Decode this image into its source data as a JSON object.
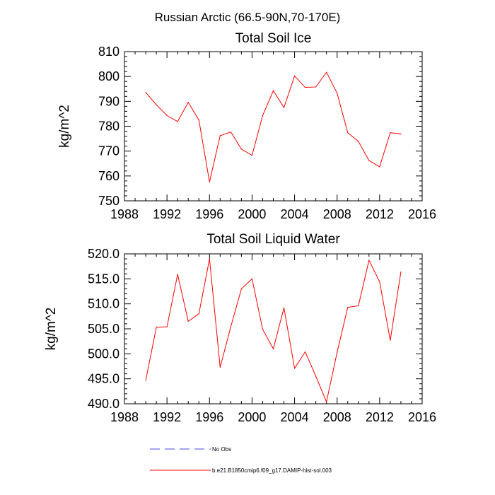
{
  "title": "Russian Arctic (66.5-90N,70-170E)",
  "legend": {
    "items": [
      {
        "label": "No Obs",
        "color": "#4a4adf",
        "dash": "dashed"
      },
      {
        "label": "b.e21.B1850cmip6.f09_g17.DAMIP-hist-sol.003",
        "color": "#ff0000",
        "dash": "solid"
      }
    ]
  },
  "chart_data": [
    {
      "type": "line",
      "title": "Total Soil Ice",
      "xlabel": "",
      "ylabel": "kg/m^2",
      "xlim": [
        1988,
        2016
      ],
      "ylim": [
        750,
        810
      ],
      "xticks": [
        "1988",
        "1992",
        "1996",
        "2000",
        "2004",
        "2008",
        "2012",
        "2016"
      ],
      "yticks": [
        "750",
        "760",
        "770",
        "780",
        "790",
        "800",
        "810"
      ],
      "series": [
        {
          "name": "b.e21.B1850cmip6.f09_g17.DAMIP-hist-sol.003",
          "color": "#ff0000",
          "x": [
            1990,
            1991,
            1992,
            1993,
            1994,
            1995,
            1996,
            1997,
            1998,
            1999,
            2000,
            2001,
            2002,
            2003,
            2004,
            2005,
            2006,
            2007,
            2008,
            2009,
            2010,
            2011,
            2012,
            2013,
            2014
          ],
          "values": [
            793.6,
            788.6,
            784.3,
            781.9,
            789.6,
            782.5,
            757.6,
            776.2,
            777.7,
            770.8,
            768.3,
            784.3,
            794.3,
            787.5,
            800.2,
            795.6,
            795.8,
            801.7,
            793.3,
            777.4,
            773.9,
            766.2,
            763.7,
            777.4,
            776.9
          ]
        }
      ]
    },
    {
      "type": "line",
      "title": "Total Soil Liquid Water",
      "xlabel": "",
      "ylabel": "kg/m^2",
      "xlim": [
        1988,
        2016
      ],
      "ylim": [
        490,
        520
      ],
      "xticks": [
        "1988",
        "1992",
        "1996",
        "2000",
        "2004",
        "2008",
        "2012",
        "2016"
      ],
      "yticks": [
        "490.0",
        "495.0",
        "500.0",
        "505.0",
        "510.0",
        "515.0",
        "520.0"
      ],
      "series": [
        {
          "name": "b.e21.B1850cmip6.f09_g17.DAMIP-hist-sol.003",
          "color": "#ff0000",
          "x": [
            1990,
            1991,
            1992,
            1993,
            1994,
            1995,
            1996,
            1997,
            1998,
            1999,
            2000,
            2001,
            2002,
            2003,
            2004,
            2005,
            2006,
            2007,
            2008,
            2009,
            2010,
            2011,
            2012,
            2013,
            2014
          ],
          "values": [
            494.7,
            505.3,
            505.4,
            515.9,
            506.5,
            508.0,
            519.0,
            497.3,
            505.4,
            513.0,
            515.0,
            504.9,
            501.0,
            509.2,
            497.1,
            500.4,
            495.5,
            490.4,
            500.3,
            509.3,
            509.6,
            518.7,
            514.4,
            502.7,
            516.4
          ]
        }
      ]
    }
  ]
}
